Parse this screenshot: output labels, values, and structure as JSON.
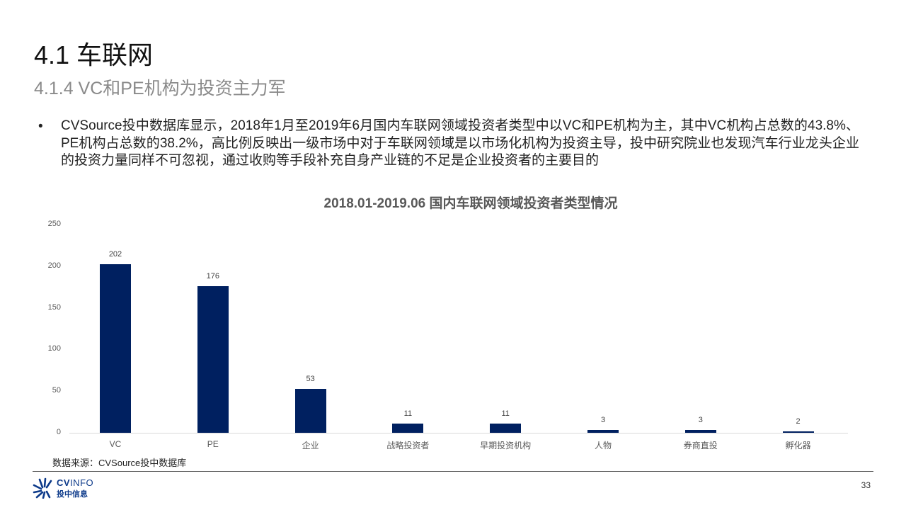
{
  "header": {
    "title": "4.1 车联网",
    "subtitle": "4.1.4 VC和PE机构为投资主力军"
  },
  "body": {
    "bullet_symbol": "•",
    "bullet_text": "CVSource投中数据库显示，2018年1月至2019年6月国内车联网领域投资者类型中以VC和PE机构为主，其中VC机构占总数的43.8%、PE机构占总数的38.2%，高比例反映出一级市场中对于车联网领域是以市场化机构为投资主导，投中研究院业也发现汽车行业龙头企业的投资力量同样不可忽视，通过收购等手段补充自身产业链的不足是企业投资者的主要目的"
  },
  "chart_data": {
    "type": "bar",
    "title": "2018.01-2019.06 国内车联网领域投资者类型情况",
    "categories": [
      "VC",
      "PE",
      "企业",
      "战略投资者",
      "早期投资机构",
      "人物",
      "券商直投",
      "孵化器"
    ],
    "values": [
      202,
      176,
      53,
      11,
      11,
      3,
      3,
      2
    ],
    "value_labels": [
      "202",
      "176",
      "53",
      "11",
      "11",
      "3",
      "3",
      "2"
    ],
    "xlabel": "",
    "ylabel": "",
    "ylim": [
      0,
      250
    ],
    "yticks": [
      "250",
      "200",
      "150",
      "100",
      "50",
      "0"
    ],
    "grid": false,
    "legend": "none",
    "bar_color": "#002060"
  },
  "footer": {
    "source": "数据来源：CVSource投中数据库",
    "logo_en_bold": "CV",
    "logo_en_light": "INFO",
    "logo_cn": "投中信息",
    "page_number": "33"
  },
  "colors": {
    "bar": "#002060",
    "logo": "#0d3a8a",
    "subtitle": "#8a8a8a"
  }
}
